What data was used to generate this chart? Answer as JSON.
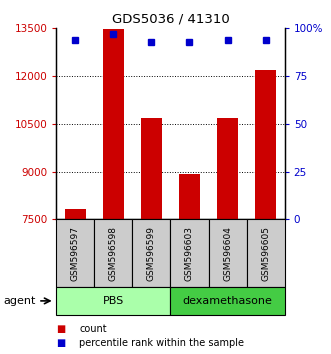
{
  "title": "GDS5036 / 41310",
  "samples": [
    "GSM596597",
    "GSM596598",
    "GSM596599",
    "GSM596603",
    "GSM596604",
    "GSM596605"
  ],
  "bar_heights": [
    7820,
    13480,
    10680,
    8920,
    10680,
    12180
  ],
  "percentile_values": [
    94,
    97,
    93,
    93,
    94,
    94
  ],
  "ylim_left": [
    7500,
    13500
  ],
  "ylim_right": [
    0,
    100
  ],
  "yticks_left": [
    7500,
    9000,
    10500,
    12000,
    13500
  ],
  "yticks_right": [
    0,
    25,
    50,
    75,
    100
  ],
  "bar_color": "#cc0000",
  "dot_color": "#0000cc",
  "pbs_color": "#aaffaa",
  "dexa_color": "#44cc44",
  "sample_bg_color": "#cccccc",
  "bar_width": 0.55,
  "agent_label": "agent"
}
